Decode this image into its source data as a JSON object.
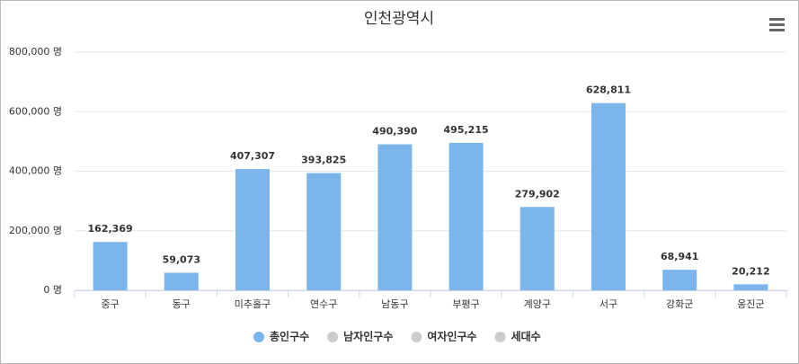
{
  "chart_data": {
    "type": "bar",
    "title": "인천광역시",
    "categories": [
      "중구",
      "동구",
      "미추홀구",
      "연수구",
      "남동구",
      "부평구",
      "계양구",
      "서구",
      "강화군",
      "옹진군"
    ],
    "series": [
      {
        "name": "총인구수",
        "color": "#7cb5ec",
        "values": [
          162369,
          59073,
          407307,
          393825,
          490390,
          495215,
          279902,
          628811,
          68941,
          20212
        ],
        "value_labels": [
          "162,369",
          "59,073",
          "407,307",
          "393,825",
          "490,390",
          "495,215",
          "279,902",
          "628,811",
          "68,941",
          "20,212"
        ]
      },
      {
        "name": "남자인구수",
        "color": "#cccccc",
        "hidden": true
      },
      {
        "name": "여자인구수",
        "color": "#cccccc",
        "hidden": true
      },
      {
        "name": "세대수",
        "color": "#cccccc",
        "hidden": true
      }
    ],
    "ylim": [
      0,
      800000
    ],
    "yticks": [
      {
        "value": 0,
        "label": "0 명"
      },
      {
        "value": 200000,
        "label": "200,000 명"
      },
      {
        "value": 400000,
        "label": "400,000 명"
      },
      {
        "value": 600000,
        "label": "600,000 명"
      },
      {
        "value": 800000,
        "label": "800,000 명"
      }
    ],
    "grid": true
  }
}
